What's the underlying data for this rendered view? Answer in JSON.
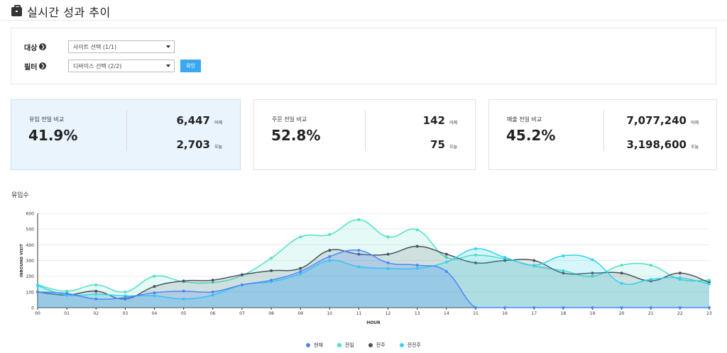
{
  "page": {
    "title": "실시간 성과 추이"
  },
  "filters": {
    "target_label": "대상",
    "target_value": "사이트 선택 (1/1)",
    "filter_label": "필터",
    "filter_value": "디바이스 선택 (2/2)",
    "confirm_label": "확인"
  },
  "cards": [
    {
      "label": "유입 전일 비교",
      "percent": "41.9%",
      "yesterday": "6,447",
      "yesterday_unit": "어제",
      "today": "2,703",
      "today_unit": "오늘"
    },
    {
      "label": "주문 전일 비교",
      "percent": "52.8%",
      "yesterday": "142",
      "yesterday_unit": "어제",
      "today": "75",
      "today_unit": "오늘"
    },
    {
      "label": "매출 전일 비교",
      "percent": "45.2%",
      "yesterday": "7,077,240",
      "yesterday_unit": "어제",
      "today": "3,198,600",
      "today_unit": "오늘"
    }
  ],
  "colors": {
    "current": "#4f86f7",
    "prev_day": "#4fe0c3",
    "prev_week": "#4a5461",
    "two_weeks": "#33d2f2",
    "active_card": "#eaf4fd",
    "button": "#3aa8f0"
  },
  "chart_data": {
    "type": "area",
    "title": "유입수",
    "xlabel": "HOUR",
    "ylabel": "INBOUND VISIT",
    "categories": [
      "00",
      "01",
      "02",
      "03",
      "04",
      "05",
      "06",
      "07",
      "08",
      "09",
      "10",
      "11",
      "12",
      "13",
      "14",
      "15",
      "16",
      "17",
      "18",
      "19",
      "20",
      "21",
      "22",
      "23"
    ],
    "ylim": [
      0,
      600
    ],
    "yticks": [
      0,
      100,
      200,
      300,
      400,
      500,
      600
    ],
    "series": [
      {
        "name": "현재",
        "key": "current",
        "values": [
          100,
          90,
          55,
          65,
          95,
          105,
          100,
          145,
          175,
          230,
          325,
          365,
          285,
          270,
          230,
          0,
          0,
          0,
          0,
          0,
          0,
          0,
          0,
          0
        ]
      },
      {
        "name": "전일",
        "key": "prev_day",
        "values": [
          145,
          105,
          145,
          100,
          200,
          165,
          160,
          205,
          315,
          450,
          465,
          560,
          450,
          495,
          320,
          335,
          310,
          265,
          235,
          200,
          270,
          270,
          180,
          175
        ]
      },
      {
        "name": "전주",
        "key": "prev_week",
        "values": [
          100,
          80,
          105,
          55,
          135,
          170,
          175,
          210,
          235,
          250,
          365,
          340,
          340,
          390,
          340,
          285,
          300,
          300,
          220,
          220,
          220,
          170,
          220,
          160
        ]
      },
      {
        "name": "전전주",
        "key": "two_weeks",
        "values": [
          140,
          80,
          85,
          75,
          75,
          55,
          80,
          145,
          165,
          215,
          300,
          260,
          250,
          250,
          290,
          375,
          320,
          270,
          330,
          305,
          155,
          180,
          190,
          150
        ]
      }
    ]
  }
}
